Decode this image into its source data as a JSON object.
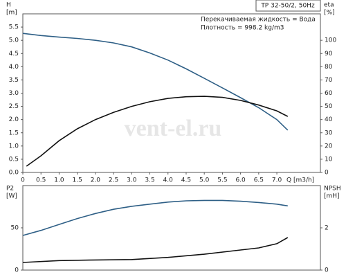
{
  "watermark": "vent-el.ru",
  "chart_data": [
    {
      "type": "line",
      "header": "TP 32-50/2, 50Hz",
      "notes": [
        "Перекачиваемая жидкость = Вода",
        "Плотность = 998.2 kg/m3"
      ],
      "ylabel": [
        "H",
        "[m]"
      ],
      "y2label": [
        "eta",
        "[%]"
      ],
      "xlabel": "Q [m3/h]",
      "xlim": [
        0,
        8.2
      ],
      "ylim": [
        0,
        6
      ],
      "y2lim": [
        0,
        120
      ],
      "xticks": [
        0,
        0.5,
        {
          "value": 1,
          "label": "1.0"
        },
        1.5,
        {
          "value": 2,
          "label": "2.0"
        },
        2.5,
        {
          "value": 3,
          "label": "3.0"
        },
        3.5,
        {
          "value": 4,
          "label": "4.0"
        },
        4.5,
        {
          "value": 5,
          "label": "5.0"
        },
        5.5,
        {
          "value": 6,
          "label": "6.0"
        },
        6.5,
        {
          "value": 7,
          "label": "7.0"
        }
      ],
      "yticks": [
        {
          "value": 0,
          "label": "0.0"
        },
        0.5,
        {
          "value": 1,
          "label": "1.0"
        },
        1.5,
        {
          "value": 2,
          "label": "2.0"
        },
        2.5,
        {
          "value": 3,
          "label": "3.0"
        },
        3.5,
        {
          "value": 4,
          "label": "4.0"
        },
        4.5,
        {
          "value": 5,
          "label": "5.0"
        },
        5.5
      ],
      "y2ticks": [
        0,
        10,
        20,
        30,
        40,
        50,
        60,
        70,
        80,
        90,
        100
      ],
      "series": [
        {
          "color": "#2e5f86",
          "x": [
            0,
            0.5,
            1,
            1.5,
            2,
            2.5,
            3,
            3.5,
            4,
            4.5,
            5,
            5.5,
            6,
            6.5,
            7,
            7.3
          ],
          "values": [
            5.26,
            5.18,
            5.12,
            5.07,
            5.0,
            4.9,
            4.75,
            4.52,
            4.25,
            3.92,
            3.56,
            3.2,
            2.83,
            2.45,
            2.0,
            1.6
          ]
        },
        {
          "color": "#111111",
          "axis": "y2",
          "x": [
            0.1,
            0.5,
            1,
            1.5,
            2,
            2.5,
            3,
            3.5,
            4,
            4.5,
            5,
            5.5,
            6,
            6.5,
            7,
            7.3
          ],
          "values": [
            4.7,
            12.6,
            24,
            33,
            40,
            45.5,
            50,
            53.5,
            56,
            57.3,
            57.6,
            56.8,
            54.5,
            51,
            46.6,
            42.4
          ]
        }
      ]
    },
    {
      "type": "line",
      "ylabel": [
        "P2",
        "[W]"
      ],
      "y2label": [
        "NPSH",
        "[mH]"
      ],
      "xlim": [
        0,
        8.2
      ],
      "ylim": [
        0,
        100
      ],
      "y2lim": [
        0,
        4
      ],
      "yticks": [
        0,
        50
      ],
      "y2ticks": [
        0,
        2
      ],
      "series": [
        {
          "color": "#2e5f86",
          "x": [
            0,
            0.5,
            1,
            1.5,
            2,
            2.5,
            3,
            3.5,
            4,
            4.5,
            5,
            5.5,
            6,
            6.5,
            7,
            7.3
          ],
          "values": [
            41,
            47,
            54,
            61,
            67,
            72,
            75.5,
            78,
            80.5,
            82,
            82.5,
            82.5,
            81.5,
            80,
            78,
            76
          ]
        },
        {
          "color": "#111111",
          "axis": "y2",
          "x": [
            0,
            1,
            2,
            3,
            4,
            5,
            6,
            6.5,
            7,
            7.3
          ],
          "values": [
            0.36,
            0.45,
            0.48,
            0.5,
            0.6,
            0.75,
            0.95,
            1.05,
            1.25,
            1.54
          ]
        }
      ]
    }
  ]
}
